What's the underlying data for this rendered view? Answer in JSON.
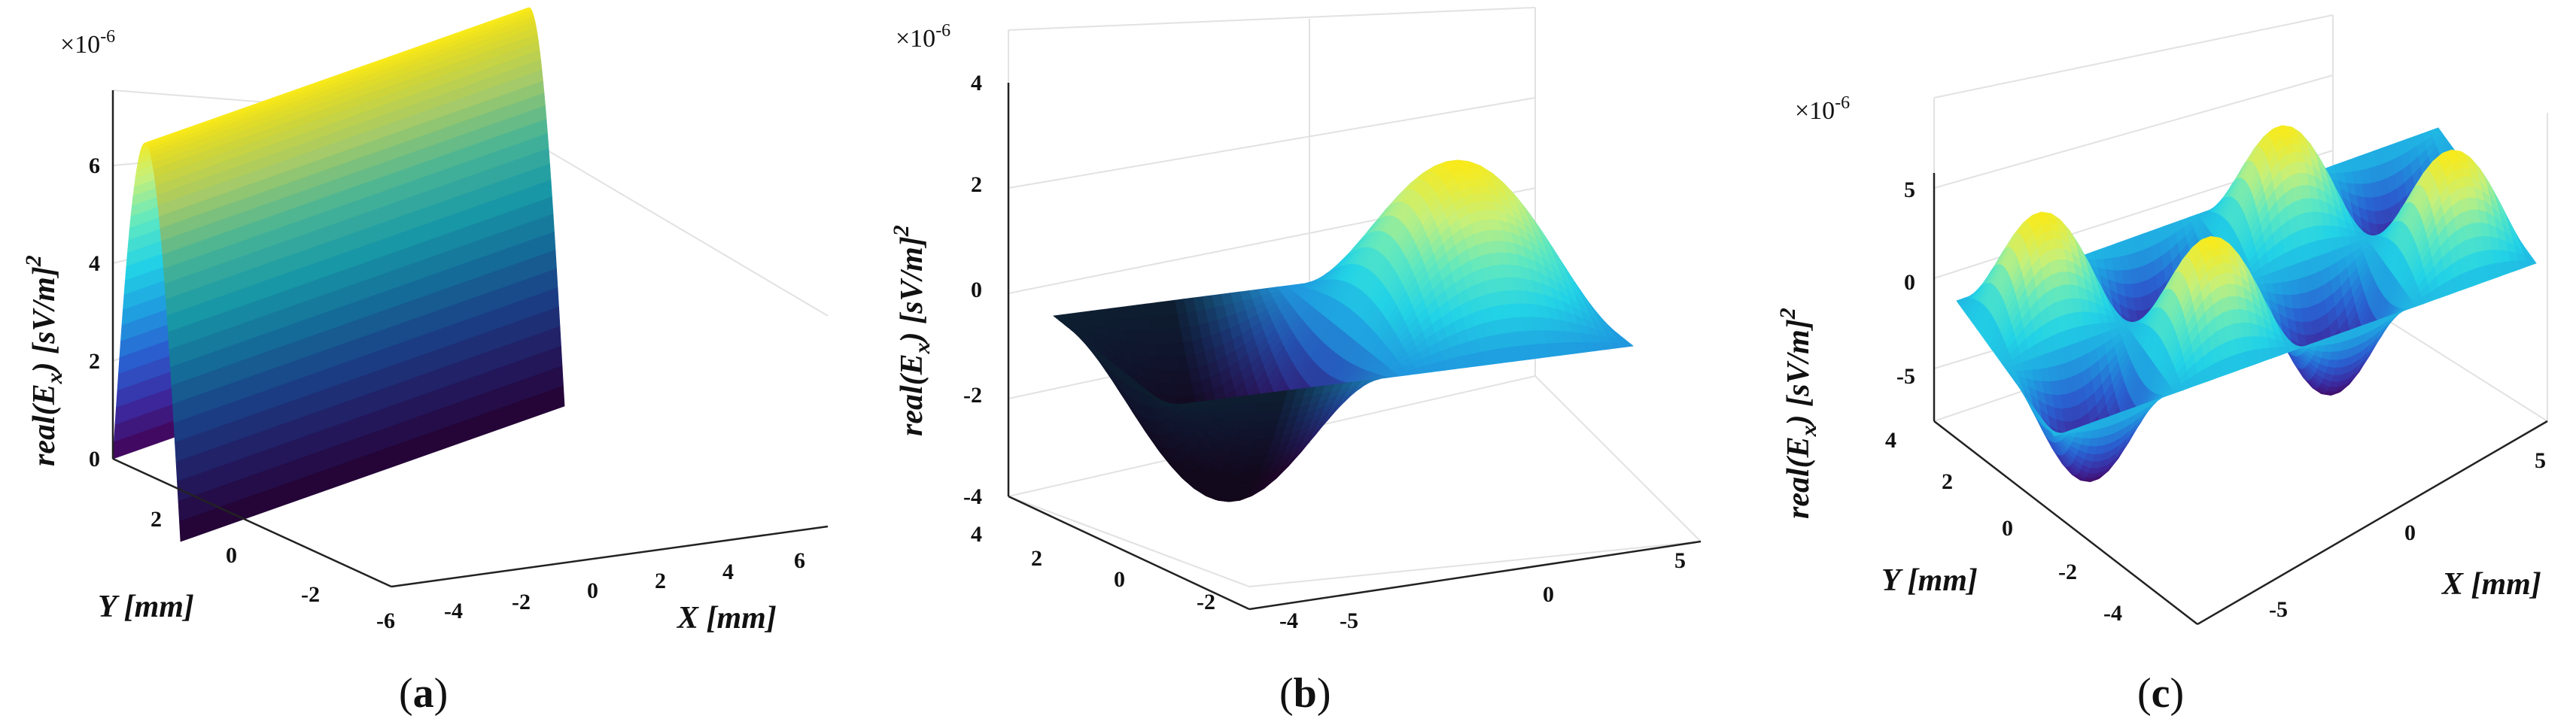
{
  "colormap": [
    "#440154",
    "#3b2aa0",
    "#2a5fd0",
    "#1f9ee0",
    "#22d3e6",
    "#5fe8c0",
    "#c6f07a",
    "#f9ea1a"
  ],
  "panel_b_shadow": "#0a0a12",
  "chart_data": [
    {
      "type": "surface",
      "panel": "(a)",
      "panel_letter": "a",
      "zlabel_prefix": "real(E",
      "zlabel_sub": "x",
      "zlabel_suffix": ")  [sV/m]",
      "zlabel_sup": "2",
      "xlabel": "X [mm]",
      "ylabel": "Y [mm]",
      "z_scale": "×10",
      "z_scale_exp": "-6",
      "x_ticks": [
        "-6",
        "-4",
        "-2",
        "0",
        "2",
        "4",
        "6"
      ],
      "y_ticks": [
        "2",
        "0",
        "-2"
      ],
      "z_ticks": [
        "0",
        "2",
        "4",
        "6"
      ],
      "xlim": [
        -6,
        6
      ],
      "ylim": [
        -3.5,
        3.5
      ],
      "zlim": [
        0,
        7
      ],
      "surface": "z = 6.5e-6 * cos(pi*y/7), constant along x",
      "z_max": 6.5
    },
    {
      "type": "surface",
      "panel": "(b)",
      "panel_letter": "b",
      "zlabel_prefix": "real(E",
      "zlabel_sub": "x",
      "zlabel_suffix": ")  [sV/m]",
      "zlabel_sup": "2",
      "xlabel": "",
      "ylabel": "",
      "z_scale": "×10",
      "z_scale_exp": "-6",
      "x_ticks": [
        "-5",
        "0",
        "5"
      ],
      "y_ticks": [
        "4",
        "2",
        "0",
        "-2",
        "-4"
      ],
      "z_ticks": [
        "4",
        "2",
        "0",
        "-2",
        "-4"
      ],
      "xlim": [
        -6,
        6
      ],
      "ylim": [
        -4,
        4
      ],
      "zlim": [
        -4,
        4
      ],
      "surface": "z = 3.5e-6 * sin(pi*x/6) * cos(pi*y/8)",
      "z_max": 3.5
    },
    {
      "type": "surface",
      "panel": "(c)",
      "panel_letter": "c",
      "zlabel_prefix": "real(E",
      "zlabel_sub": "x",
      "zlabel_suffix": ")  [sV/m]",
      "zlabel_sup": "2",
      "xlabel": "X [mm]",
      "ylabel": "Y [mm]",
      "z_scale": "×10",
      "z_scale_exp": "-6",
      "x_ticks": [
        "-5",
        "0",
        "5"
      ],
      "y_ticks": [
        "4",
        "2",
        "0",
        "-2",
        "-4"
      ],
      "z_ticks": [
        "5",
        "0",
        "-5"
      ],
      "xlim": [
        -6,
        6
      ],
      "ylim": [
        -4,
        4
      ],
      "zlim": [
        -6,
        6
      ],
      "surface": "z = 5e-6 * sin(pi*x/3) * sin(pi*y/4)",
      "z_max": 5
    }
  ]
}
